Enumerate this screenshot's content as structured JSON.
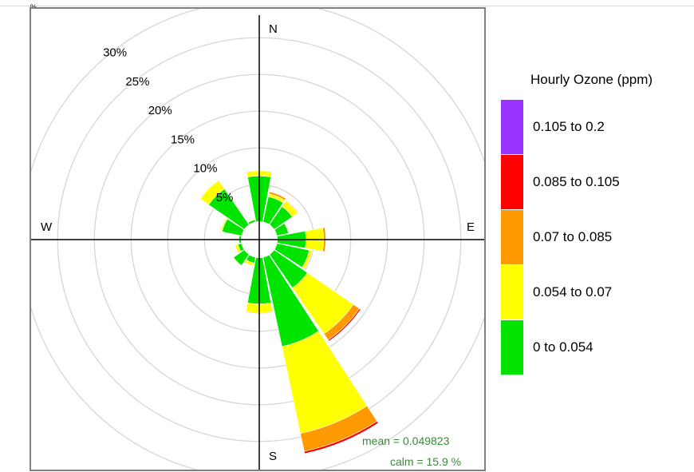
{
  "chart_data": {
    "type": "polar-stacked-bar (wind rose)",
    "legend_title": "Hourly Ozone (ppm)",
    "bins": [
      {
        "label": "0 to 0.054",
        "color": "#00e400"
      },
      {
        "label": "0.054 to 0.07",
        "color": "#ffff00"
      },
      {
        "label": "0.07 to 0.085",
        "color": "#ff9900"
      },
      {
        "label": "0.085 to 0.105",
        "color": "#ff0000"
      },
      {
        "label": "0.105 to 0.2",
        "color": "#9933ff"
      }
    ],
    "legend_order": [
      "0.105 to 0.2",
      "0.085 to 0.105",
      "0.07 to 0.085",
      "0.054 to 0.07",
      "0 to 0.054"
    ],
    "radial_ticks": [
      "5%",
      "10%",
      "15%",
      "20%",
      "25%",
      "30%"
    ],
    "radial_tick_values": [
      5,
      10,
      15,
      20,
      25,
      30
    ],
    "compass_labels": {
      "N": "N",
      "E": "E",
      "S": "S",
      "W": "W"
    },
    "corner_mark": "%",
    "unit": "percent of hours",
    "sectors": [
      {
        "direction": 0,
        "values": [
          6.2,
          0.7,
          0,
          0,
          0
        ]
      },
      {
        "direction": 22.5,
        "values": [
          3.5,
          0.4,
          0.3,
          0,
          0
        ]
      },
      {
        "direction": 45,
        "values": [
          3.0,
          0.9,
          0.1,
          0,
          0
        ]
      },
      {
        "direction": 67.5,
        "values": [
          1.6,
          0.1,
          0,
          0,
          0
        ]
      },
      {
        "direction": 90,
        "values": [
          3.9,
          2.4,
          0.3,
          0,
          0
        ]
      },
      {
        "direction": 112.5,
        "values": [
          4.5,
          0.4,
          0,
          0,
          0
        ]
      },
      {
        "direction": 135,
        "values": [
          5.5,
          7.6,
          1.0,
          0.2,
          0
        ]
      },
      {
        "direction": 157.5,
        "values": [
          12.4,
          12.1,
          2.5,
          0.3,
          0
        ]
      },
      {
        "direction": 180,
        "values": [
          6.3,
          1.2,
          0.1,
          0,
          0
        ]
      },
      {
        "direction": 202.5,
        "values": [
          0.8,
          0.4,
          0,
          0,
          0
        ]
      },
      {
        "direction": 225,
        "values": [
          1.8,
          0.1,
          0,
          0,
          0
        ]
      },
      {
        "direction": 247.5,
        "values": [
          0.5,
          0.4,
          0,
          0,
          0
        ]
      },
      {
        "direction": 270,
        "values": [
          0.3,
          0.1,
          0,
          0,
          0
        ]
      },
      {
        "direction": 292.5,
        "values": [
          2.7,
          0.2,
          0,
          0,
          0
        ]
      },
      {
        "direction": 315,
        "values": [
          5.9,
          1.4,
          0,
          0,
          0
        ]
      },
      {
        "direction": 337.5,
        "values": [
          0.3,
          0.1,
          0,
          0,
          0
        ]
      }
    ],
    "stats": {
      "mean_text": "mean  =  0.049823",
      "calm_text": "calm =  15.9 %"
    },
    "calm_percent": 15.9,
    "mean": 0.049823
  }
}
